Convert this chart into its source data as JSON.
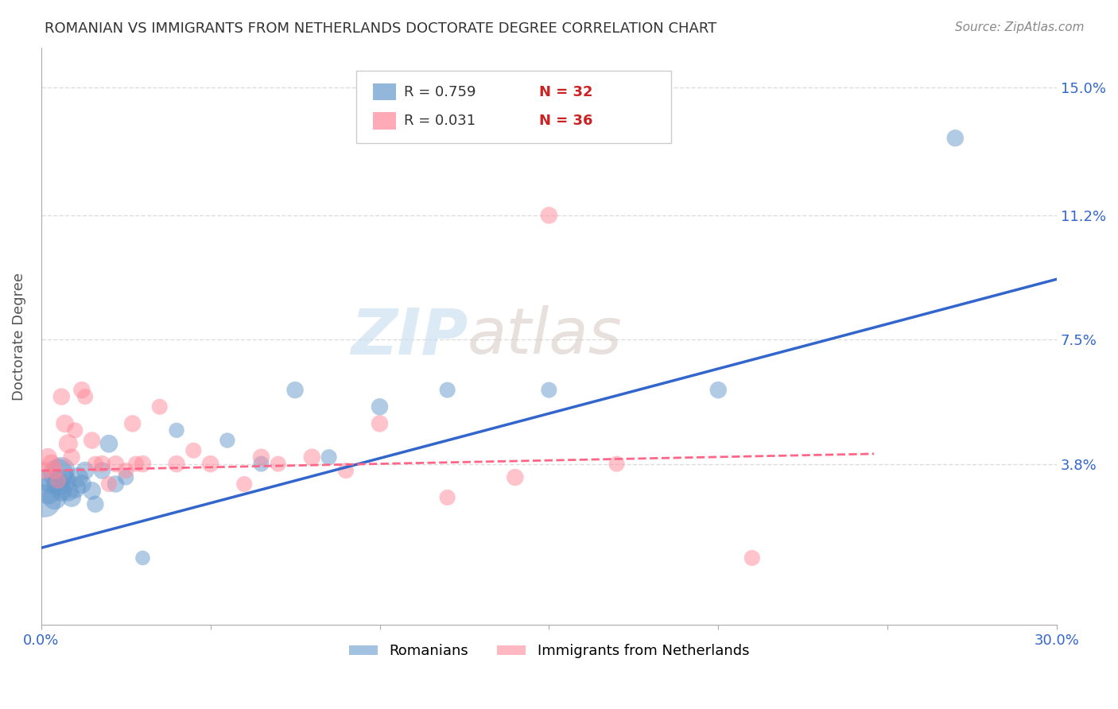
{
  "title": "ROMANIAN VS IMMIGRANTS FROM NETHERLANDS DOCTORATE DEGREE CORRELATION CHART",
  "source": "Source: ZipAtlas.com",
  "ylabel": "Doctorate Degree",
  "ytick_labels": [
    "15.0%",
    "11.2%",
    "7.5%",
    "3.8%"
  ],
  "ytick_values": [
    0.15,
    0.112,
    0.075,
    0.038
  ],
  "xmin": 0.0,
  "xmax": 0.3,
  "ymin": -0.01,
  "ymax": 0.162,
  "legend_bottom": [
    "Romanians",
    "Immigrants from Netherlands"
  ],
  "blue_color": "#6699cc",
  "pink_color": "#ff8899",
  "trend_blue_color": "#3366cc",
  "trend_pink_color": "#ff6688",
  "watermark_zip": "ZIP",
  "watermark_atlas": "atlas",
  "blue_R": 0.759,
  "blue_N": 32,
  "pink_R": 0.031,
  "pink_N": 36,
  "romanians_x": [
    0.001,
    0.002,
    0.003,
    0.004,
    0.005,
    0.005,
    0.006,
    0.006,
    0.007,
    0.008,
    0.009,
    0.01,
    0.011,
    0.012,
    0.013,
    0.015,
    0.016,
    0.018,
    0.02,
    0.022,
    0.025,
    0.03,
    0.04,
    0.055,
    0.065,
    0.075,
    0.085,
    0.1,
    0.12,
    0.15,
    0.2,
    0.27
  ],
  "romanians_y": [
    0.027,
    0.03,
    0.033,
    0.028,
    0.035,
    0.032,
    0.036,
    0.03,
    0.033,
    0.03,
    0.028,
    0.031,
    0.034,
    0.032,
    0.036,
    0.03,
    0.026,
    0.036,
    0.044,
    0.032,
    0.034,
    0.01,
    0.048,
    0.045,
    0.038,
    0.06,
    0.04,
    0.055,
    0.06,
    0.06,
    0.06,
    0.135
  ],
  "romanians_sizes": [
    300,
    200,
    180,
    160,
    250,
    150,
    200,
    120,
    140,
    120,
    100,
    130,
    110,
    100,
    90,
    90,
    80,
    80,
    90,
    80,
    70,
    60,
    65,
    65,
    70,
    80,
    70,
    80,
    70,
    70,
    80,
    80
  ],
  "immigrants_x": [
    0.001,
    0.002,
    0.003,
    0.004,
    0.005,
    0.006,
    0.007,
    0.008,
    0.009,
    0.01,
    0.012,
    0.013,
    0.015,
    0.016,
    0.018,
    0.02,
    0.022,
    0.025,
    0.027,
    0.028,
    0.03,
    0.035,
    0.04,
    0.045,
    0.05,
    0.06,
    0.065,
    0.07,
    0.08,
    0.09,
    0.1,
    0.12,
    0.14,
    0.15,
    0.17,
    0.21
  ],
  "immigrants_y": [
    0.036,
    0.04,
    0.038,
    0.036,
    0.033,
    0.058,
    0.05,
    0.044,
    0.04,
    0.048,
    0.06,
    0.058,
    0.045,
    0.038,
    0.038,
    0.032,
    0.038,
    0.036,
    0.05,
    0.038,
    0.038,
    0.055,
    0.038,
    0.042,
    0.038,
    0.032,
    0.04,
    0.038,
    0.04,
    0.036,
    0.05,
    0.028,
    0.034,
    0.112,
    0.038,
    0.01
  ],
  "immigrants_sizes": [
    80,
    90,
    100,
    80,
    70,
    80,
    90,
    100,
    80,
    70,
    80,
    70,
    80,
    70,
    80,
    70,
    80,
    70,
    80,
    70,
    80,
    70,
    80,
    70,
    80,
    70,
    80,
    70,
    80,
    70,
    80,
    70,
    80,
    80,
    70,
    70
  ],
  "background_color": "#ffffff",
  "grid_color": "#dddddd",
  "title_color": "#333333",
  "axis_label_color": "#555555",
  "ytick_color": "#3366cc",
  "xtick_color": "#3366cc"
}
